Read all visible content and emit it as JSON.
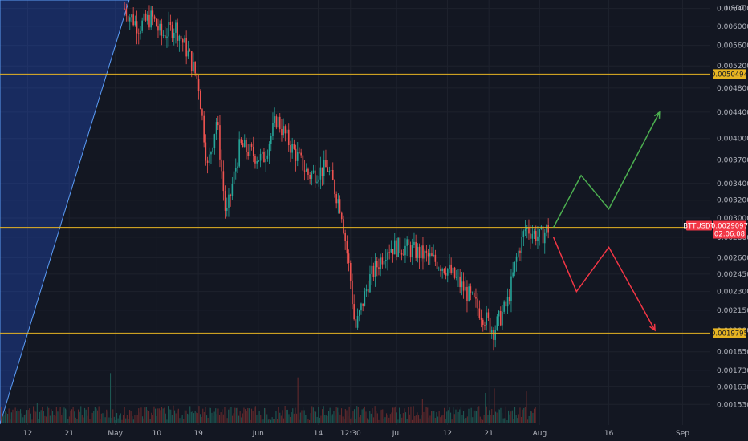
{
  "chart_data": {
    "type": "candlestick",
    "symbol": "BTTUSDT",
    "quote_unit": "USDT",
    "y_scale": "log",
    "y_range": [
      0.00142,
      0.0066
    ],
    "y_ticks": [
      "0.0015300",
      "0.0016300",
      "0.0017300",
      "0.0018500",
      "0.0020000",
      "0.0021500",
      "0.0023000",
      "0.0024500",
      "0.0026000",
      "0.0028000",
      "0.0030000",
      "0.0032000",
      "0.0034000",
      "0.0037000",
      "0.0040000",
      "0.0044000",
      "0.0048000",
      "0.0052000",
      "0.0056000",
      "0.0060000",
      "0.0064000"
    ],
    "x_range": [
      "2021-04-06",
      "2021-09-07"
    ],
    "x_ticks": [
      {
        "date": "2021-04-12",
        "label": "12"
      },
      {
        "date": "2021-04-21",
        "label": "21"
      },
      {
        "date": "2021-05-01",
        "label": "May"
      },
      {
        "date": "2021-05-10",
        "label": "10"
      },
      {
        "date": "2021-05-19",
        "label": "19"
      },
      {
        "date": "2021-06-01",
        "label": "Jun"
      },
      {
        "date": "2021-06-14",
        "label": "14"
      },
      {
        "date": "2021-06-21",
        "label": "12:30"
      },
      {
        "date": "2021-07-01",
        "label": "Jul"
      },
      {
        "date": "2021-07-12",
        "label": "12"
      },
      {
        "date": "2021-07-21",
        "label": "21"
      },
      {
        "date": "2021-08-01",
        "label": "Aug"
      },
      {
        "date": "2021-08-16",
        "label": "16"
      },
      {
        "date": "2021-09-01",
        "label": "Sep"
      }
    ],
    "levels": [
      {
        "value": 0.0050494,
        "label": "0.0050494",
        "color": "#e6b422"
      },
      {
        "value": 0.0029005,
        "label": "0.0029005",
        "color": "#e6b422"
      },
      {
        "value": 0.0019795,
        "label": "0.0019795",
        "color": "#e6b422"
      }
    ],
    "last_price": {
      "value": 0.0029097,
      "label": "0.0029097",
      "countdown": "02:06:08",
      "color": "#f23645"
    },
    "price_path": [
      {
        "date": "2021-05-03",
        "price": 0.0064
      },
      {
        "date": "2021-05-06",
        "price": 0.006
      },
      {
        "date": "2021-05-09",
        "price": 0.0062
      },
      {
        "date": "2021-05-11",
        "price": 0.0058
      },
      {
        "date": "2021-05-14",
        "price": 0.006
      },
      {
        "date": "2021-05-17",
        "price": 0.0054
      },
      {
        "date": "2021-05-19",
        "price": 0.0049
      },
      {
        "date": "2021-05-21",
        "price": 0.0036
      },
      {
        "date": "2021-05-23",
        "price": 0.0043
      },
      {
        "date": "2021-05-25",
        "price": 0.003
      },
      {
        "date": "2021-05-28",
        "price": 0.0039
      },
      {
        "date": "2021-06-02",
        "price": 0.0037
      },
      {
        "date": "2021-06-05",
        "price": 0.0043
      },
      {
        "date": "2021-06-08",
        "price": 0.0039
      },
      {
        "date": "2021-06-12",
        "price": 0.0035
      },
      {
        "date": "2021-06-16",
        "price": 0.0036
      },
      {
        "date": "2021-06-19",
        "price": 0.0031
      },
      {
        "date": "2021-06-21",
        "price": 0.0024
      },
      {
        "date": "2021-06-22",
        "price": 0.002
      },
      {
        "date": "2021-06-25",
        "price": 0.0024
      },
      {
        "date": "2021-06-29",
        "price": 0.0027
      },
      {
        "date": "2021-07-03",
        "price": 0.0027
      },
      {
        "date": "2021-07-08",
        "price": 0.0026
      },
      {
        "date": "2021-07-12",
        "price": 0.0025
      },
      {
        "date": "2021-07-16",
        "price": 0.0023
      },
      {
        "date": "2021-07-20",
        "price": 0.0021
      },
      {
        "date": "2021-07-22",
        "price": 0.002
      },
      {
        "date": "2021-07-25",
        "price": 0.0022
      },
      {
        "date": "2021-07-27",
        "price": 0.0026
      },
      {
        "date": "2021-07-29",
        "price": 0.0029
      },
      {
        "date": "2021-08-01",
        "price": 0.0028
      },
      {
        "date": "2021-08-03",
        "price": 0.0029
      }
    ],
    "projections": [
      {
        "color": "#4caf50",
        "points": [
          {
            "date": "2021-08-04",
            "price": 0.0029
          },
          {
            "date": "2021-08-10",
            "price": 0.0035
          },
          {
            "date": "2021-08-16",
            "price": 0.0031
          },
          {
            "date": "2021-08-27",
            "price": 0.0044
          }
        ]
      },
      {
        "color": "#f23645",
        "points": [
          {
            "date": "2021-08-04",
            "price": 0.0028
          },
          {
            "date": "2021-08-09",
            "price": 0.0023
          },
          {
            "date": "2021-08-16",
            "price": 0.0027
          },
          {
            "date": "2021-08-26",
            "price": 0.002
          }
        ]
      }
    ],
    "channel": {
      "color": "#2962ff",
      "top_from": {
        "date": "2021-04-06",
        "price": 0.0058
      },
      "top_to": {
        "date": "2021-05-04",
        "price": 0.0066
      },
      "bottom_from": {
        "date": "2021-04-06",
        "price": 0.0024
      },
      "bottom_to": {
        "date": "2021-05-04",
        "price": 0.0066
      }
    }
  }
}
